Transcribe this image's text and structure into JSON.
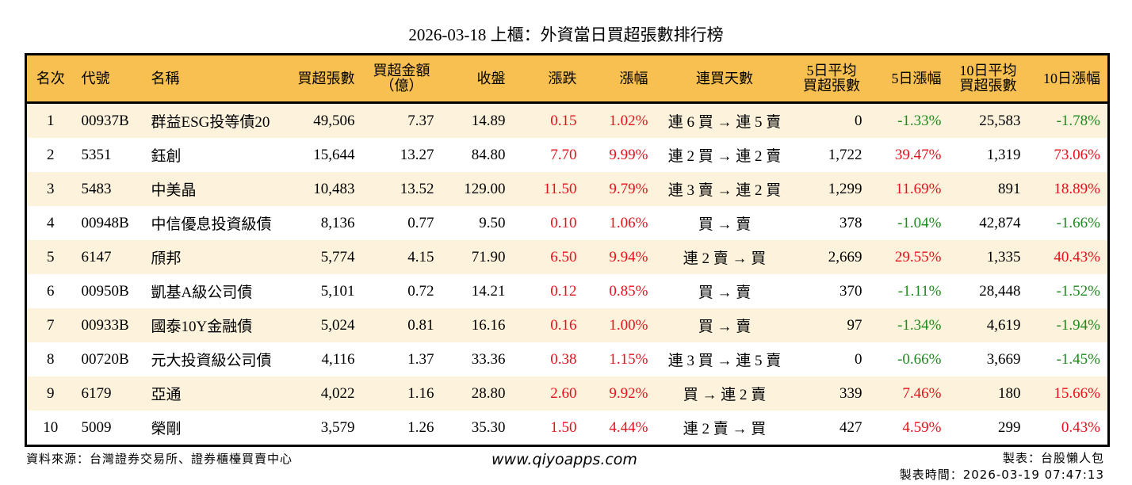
{
  "title": "2026-03-18 上櫃：外資當日買超張數排行榜",
  "columns": [
    "名次",
    "代號",
    "名稱",
    "買超張數",
    "買超金額\n（億）",
    "收盤",
    "漲跌",
    "漲幅",
    "連買天數",
    "5日平均\n買超張數",
    "5日漲幅",
    "10日平均\n買超張數",
    "10日漲幅"
  ],
  "colors": {
    "header_bg": "#f7c050",
    "alt_row_bg": "#fdf3dc",
    "up": "#e8101c",
    "down": "#1e8a1e"
  },
  "rows": [
    [
      "1",
      "00937B",
      "群益ESG投等債20",
      "49,506",
      "7.37",
      "14.89",
      "0.15",
      "1.02%",
      "連 6 買 → 連 5 賣",
      "0",
      "-1.33%",
      "25,583",
      "-1.78%"
    ],
    [
      "2",
      "5351",
      "鈺創",
      "15,644",
      "13.27",
      "84.80",
      "7.70",
      "9.99%",
      "連 2 買 → 連 2 賣",
      "1,722",
      "39.47%",
      "1,319",
      "73.06%"
    ],
    [
      "3",
      "5483",
      "中美晶",
      "10,483",
      "13.52",
      "129.00",
      "11.50",
      "9.79%",
      "連 3 賣 → 連 2 買",
      "1,299",
      "11.69%",
      "891",
      "18.89%"
    ],
    [
      "4",
      "00948B",
      "中信優息投資級債",
      "8,136",
      "0.77",
      "9.50",
      "0.10",
      "1.06%",
      "買 → 賣",
      "378",
      "-1.04%",
      "42,874",
      "-1.66%"
    ],
    [
      "5",
      "6147",
      "頎邦",
      "5,774",
      "4.15",
      "71.90",
      "6.50",
      "9.94%",
      "連 2 賣 → 買",
      "2,669",
      "29.55%",
      "1,335",
      "40.43%"
    ],
    [
      "6",
      "00950B",
      "凱基A級公司債",
      "5,101",
      "0.72",
      "14.21",
      "0.12",
      "0.85%",
      "買 → 賣",
      "370",
      "-1.11%",
      "28,448",
      "-1.52%"
    ],
    [
      "7",
      "00933B",
      "國泰10Y金融債",
      "5,024",
      "0.81",
      "16.16",
      "0.16",
      "1.00%",
      "買 → 賣",
      "97",
      "-1.34%",
      "4,619",
      "-1.94%"
    ],
    [
      "8",
      "00720B",
      "元大投資級公司債",
      "4,116",
      "1.37",
      "33.36",
      "0.38",
      "1.15%",
      "連 3 買 → 連 5 賣",
      "0",
      "-0.66%",
      "3,669",
      "-1.45%"
    ],
    [
      "9",
      "6179",
      "亞通",
      "4,022",
      "1.16",
      "28.80",
      "2.60",
      "9.92%",
      "買 → 連 2 賣",
      "339",
      "7.46%",
      "180",
      "15.66%"
    ],
    [
      "10",
      "5009",
      "榮剛",
      "3,579",
      "1.26",
      "35.30",
      "1.50",
      "4.44%",
      "連 2 賣 → 買",
      "427",
      "4.59%",
      "299",
      "0.43%"
    ]
  ],
  "footer": {
    "source": "資料來源：台灣證券交易所、證券櫃檯買賣中心",
    "site": "www.qiyoapps.com",
    "author": "製表：台股懶人包",
    "time": "製表時間：2026-03-19 07:47:13"
  }
}
